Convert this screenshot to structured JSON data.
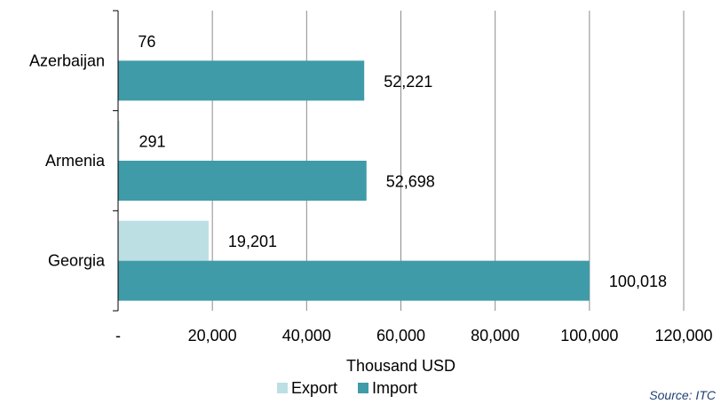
{
  "chart_data": {
    "type": "bar",
    "orientation": "horizontal",
    "categories": [
      "Azerbaijan",
      "Armenia",
      "Georgia"
    ],
    "series": [
      {
        "name": "Export",
        "values": [
          76,
          291,
          19201
        ],
        "labels": [
          "76",
          "291",
          "19,201"
        ],
        "color": "#bcdfe3"
      },
      {
        "name": "Import",
        "values": [
          52221,
          52698,
          100018
        ],
        "labels": [
          "52,221",
          "52,698",
          "100,018"
        ],
        "color": "#3f9ba8"
      }
    ],
    "xlim": [
      0,
      120000
    ],
    "x_ticks": [
      0,
      20000,
      40000,
      60000,
      80000,
      100000,
      120000
    ],
    "x_tick_labels": [
      "-",
      "20,000",
      "40,000",
      "60,000",
      "80,000",
      "100,000",
      "120,000"
    ],
    "xlabel": "Thousand USD",
    "ylabel": "",
    "title": "",
    "grid": "vertical",
    "legend": "bottom"
  },
  "source": "Source: ITC"
}
